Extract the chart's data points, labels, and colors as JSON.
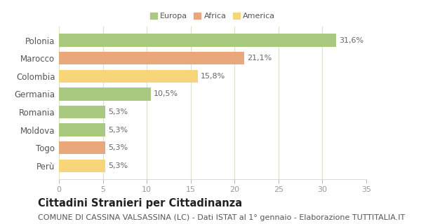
{
  "categories": [
    "Polonia",
    "Marocco",
    "Colombia",
    "Germania",
    "Romania",
    "Moldova",
    "Togo",
    "Perù"
  ],
  "values": [
    31.6,
    21.1,
    15.8,
    10.5,
    5.3,
    5.3,
    5.3,
    5.3
  ],
  "labels": [
    "31,6%",
    "21,1%",
    "15,8%",
    "10,5%",
    "5,3%",
    "5,3%",
    "5,3%",
    "5,3%"
  ],
  "colors": [
    "#a8c97f",
    "#e8a87c",
    "#f5d67a",
    "#a8c97f",
    "#a8c97f",
    "#a8c97f",
    "#e8a87c",
    "#f5d67a"
  ],
  "legend_labels": [
    "Europa",
    "Africa",
    "America"
  ],
  "legend_colors": [
    "#a8c97f",
    "#e8a87c",
    "#f5d67a"
  ],
  "xlim": [
    0,
    35
  ],
  "xticks": [
    0,
    5,
    10,
    15,
    20,
    25,
    30,
    35
  ],
  "title": "Cittadini Stranieri per Cittadinanza",
  "subtitle": "COMUNE DI CASSINA VALSASSINA (LC) - Dati ISTAT al 1° gennaio - Elaborazione TUTTITALIA.IT",
  "background_color": "#ffffff",
  "grid_color": "#d8e4c8",
  "bar_height": 0.72,
  "label_fontsize": 8.0,
  "ytick_fontsize": 8.5,
  "xtick_fontsize": 8.0,
  "title_fontsize": 10.5,
  "subtitle_fontsize": 8.0
}
